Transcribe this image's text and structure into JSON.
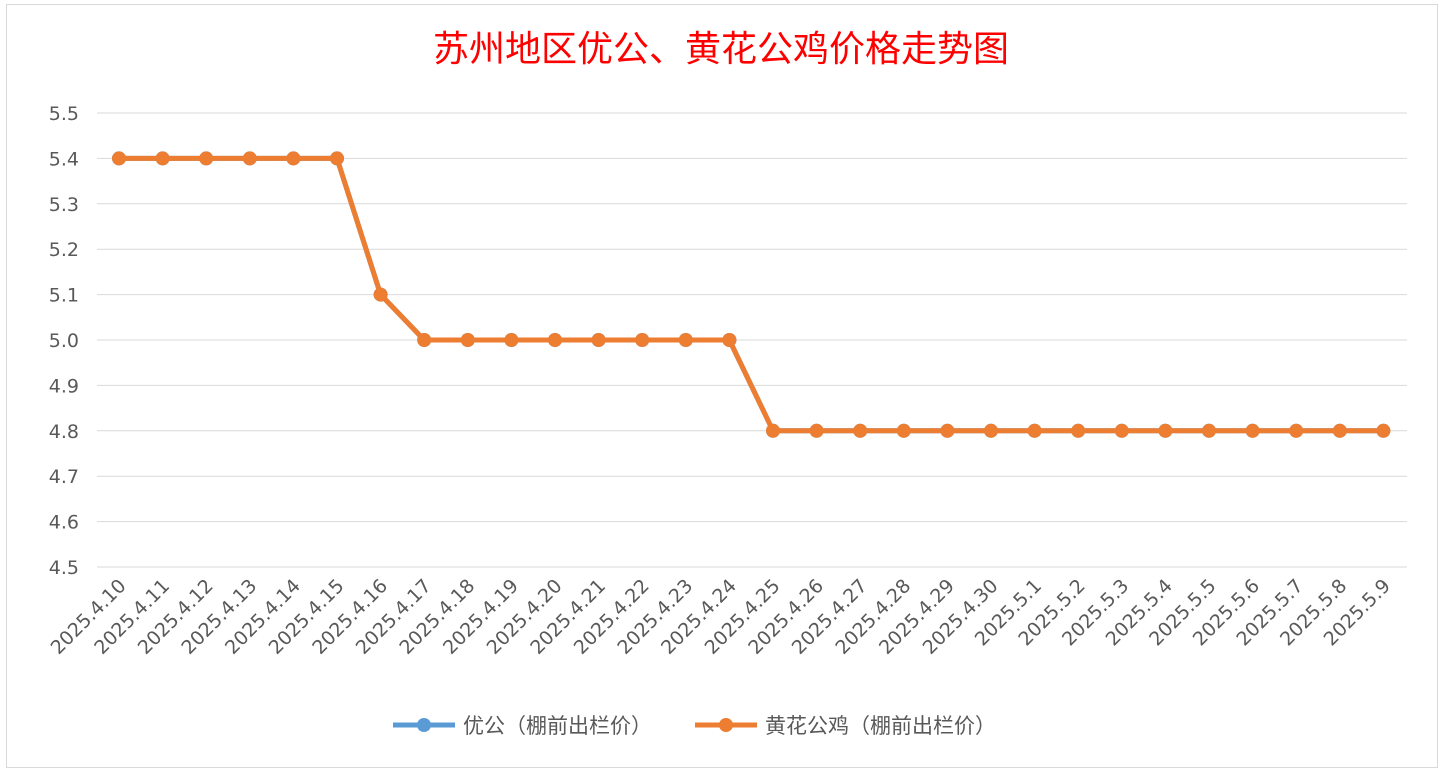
{
  "chart_data": {
    "type": "line",
    "title": "苏州地区优公、黄花公鸡价格走势图",
    "ylim": [
      4.5,
      5.5
    ],
    "y_ticks": [
      "5.5",
      "5.4",
      "5.3",
      "5.2",
      "5.1",
      "5.0",
      "4.9",
      "4.8",
      "4.7",
      "4.6",
      "4.5"
    ],
    "grid": true,
    "legend_position": "bottom",
    "categories": [
      "2025.4.10",
      "2025.4.11",
      "2025.4.12",
      "2025.4.13",
      "2025.4.14",
      "2025.4.15",
      "2025.4.16",
      "2025.4.17",
      "2025.4.18",
      "2025.4.19",
      "2025.4.20",
      "2025.4.21",
      "2025.4.22",
      "2025.4.23",
      "2025.4.24",
      "2025.4.25",
      "2025.4.26",
      "2025.4.27",
      "2025.4.28",
      "2025.4.29",
      "2025.4.30",
      "2025.5.1",
      "2025.5.2",
      "2025.5.3",
      "2025.5.4",
      "2025.5.5",
      "2025.5.6",
      "2025.5.7",
      "2025.5.8",
      "2025.5.9"
    ],
    "series": [
      {
        "name": "优公（棚前出栏价）",
        "color": "#5b9bd5",
        "values": [
          5.4,
          5.4,
          5.4,
          5.4,
          5.4,
          5.4,
          5.1,
          5.0,
          5.0,
          5.0,
          5.0,
          5.0,
          5.0,
          5.0,
          5.0,
          4.8,
          4.8,
          4.8,
          4.8,
          4.8,
          4.8,
          4.8,
          4.8,
          4.8,
          4.8,
          4.8,
          4.8,
          4.8,
          4.8,
          4.8
        ]
      },
      {
        "name": "黄花公鸡（棚前出栏价）",
        "color": "#ed7d31",
        "values": [
          5.4,
          5.4,
          5.4,
          5.4,
          5.4,
          5.4,
          5.1,
          5.0,
          5.0,
          5.0,
          5.0,
          5.0,
          5.0,
          5.0,
          5.0,
          4.8,
          4.8,
          4.8,
          4.8,
          4.8,
          4.8,
          4.8,
          4.8,
          4.8,
          4.8,
          4.8,
          4.8,
          4.8,
          4.8,
          4.8
        ]
      }
    ]
  }
}
